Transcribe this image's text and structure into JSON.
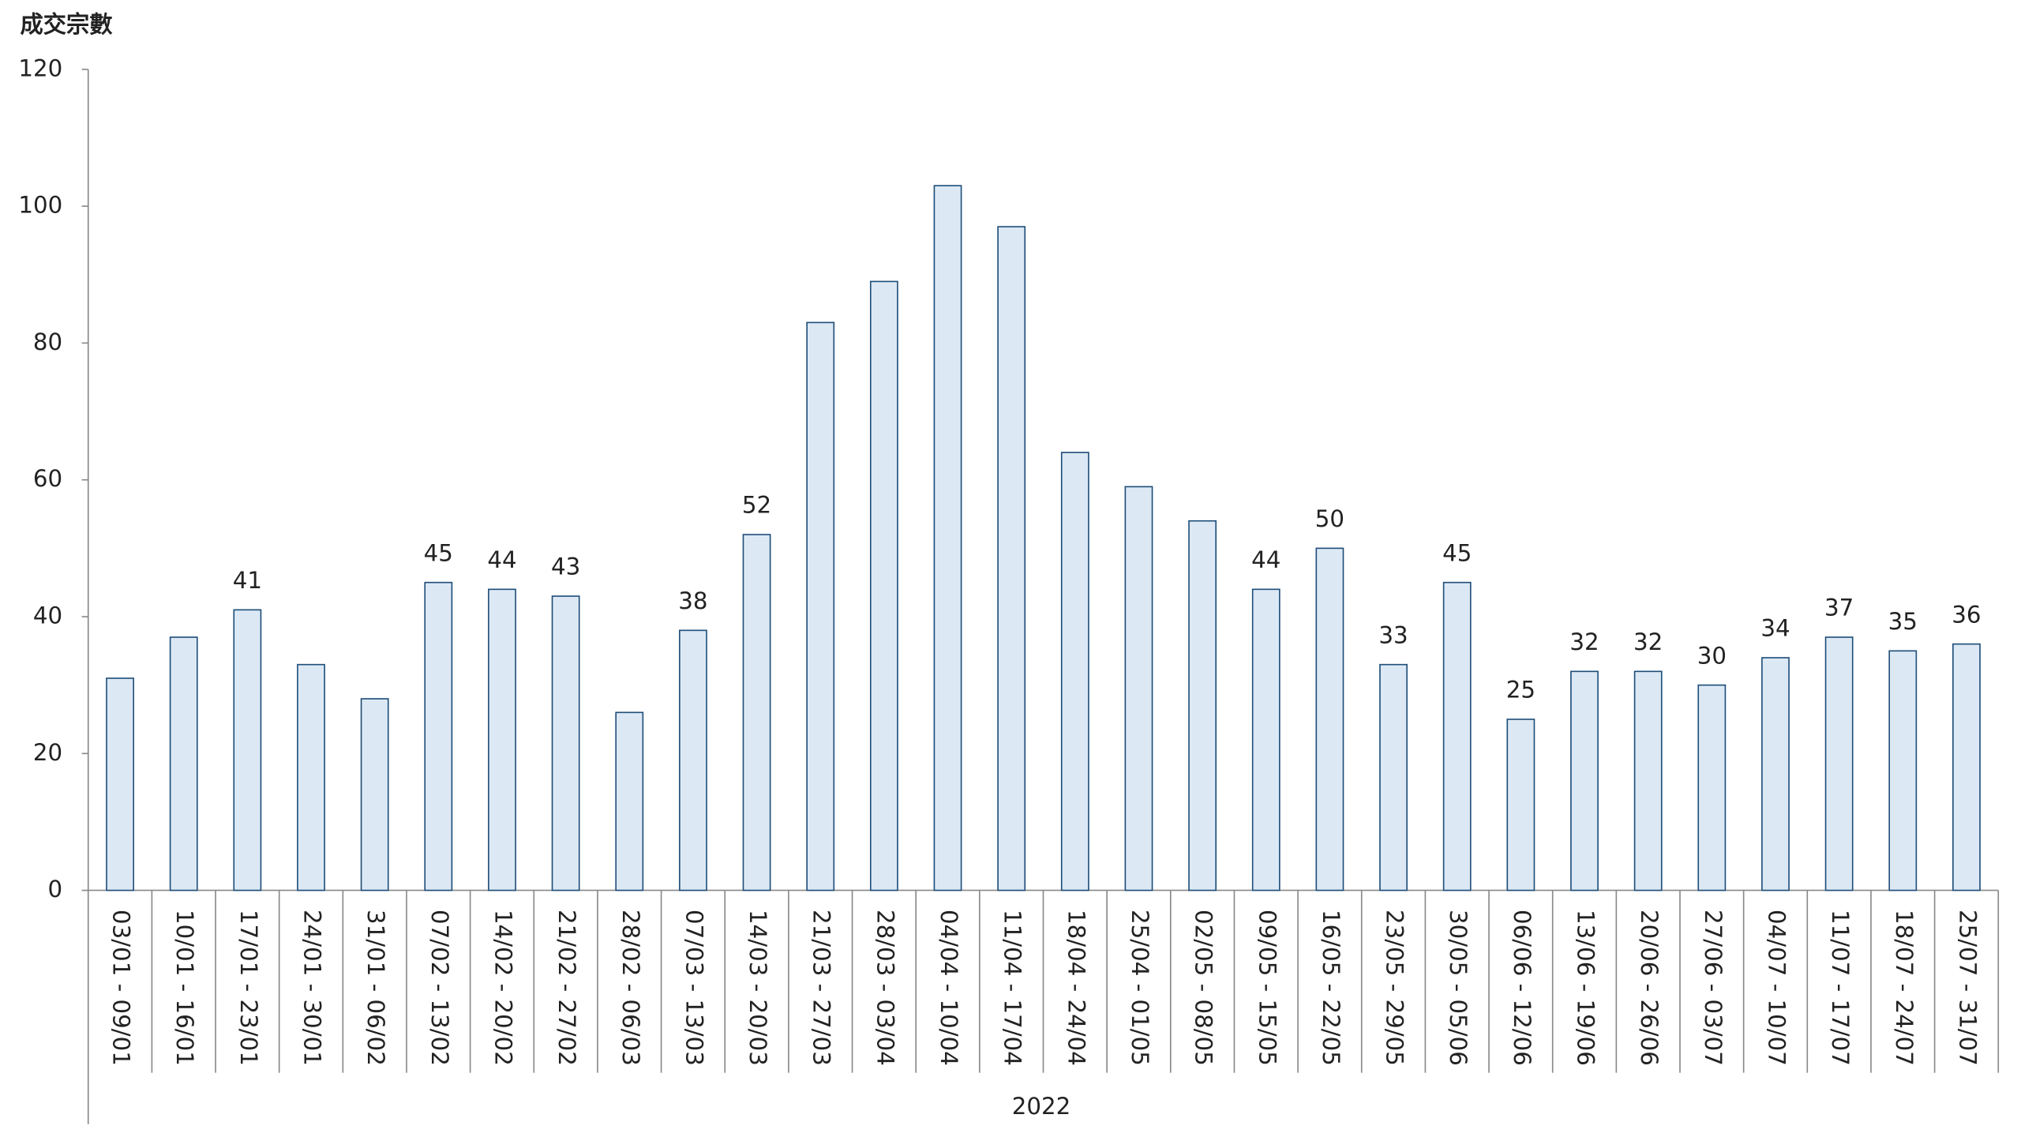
{
  "chart_data": {
    "type": "bar",
    "ylabel": "成交宗數",
    "xlabel": "2022",
    "categories": [
      "03/01 - 09/01",
      "10/01 - 16/01",
      "17/01 - 23/01",
      "24/01 - 30/01",
      "31/01 - 06/02",
      "07/02 - 13/02",
      "14/02 - 20/02",
      "21/02 - 27/02",
      "28/02 - 06/03",
      "07/03 - 13/03",
      "14/03 - 20/03",
      "21/03 - 27/03",
      "28/03 - 03/04",
      "04/04 - 10/04",
      "11/04 - 17/04",
      "18/04 - 24/04",
      "25/04 - 01/05",
      "02/05 - 08/05",
      "09/05 - 15/05",
      "16/05 - 22/05",
      "23/05 - 29/05",
      "30/05 - 05/06",
      "06/06 - 12/06",
      "13/06 - 19/06",
      "20/06 - 26/06",
      "27/06 - 03/07",
      "04/07 - 10/07",
      "11/07 - 17/07",
      "18/07 - 24/07",
      "25/07 - 31/07"
    ],
    "values": [
      31,
      37,
      41,
      33,
      28,
      45,
      44,
      43,
      26,
      38,
      52,
      83,
      89,
      103,
      97,
      64,
      59,
      54,
      44,
      50,
      33,
      45,
      25,
      32,
      32,
      30,
      34,
      37,
      35,
      36
    ],
    "show_value_label": [
      false,
      false,
      true,
      false,
      false,
      true,
      true,
      true,
      false,
      true,
      true,
      false,
      false,
      false,
      false,
      false,
      false,
      false,
      true,
      true,
      true,
      true,
      true,
      true,
      true,
      true,
      true,
      true,
      true,
      true
    ],
    "color": "#dce9f5",
    "edge_color": "#1f4e79",
    "ylim": [
      0,
      120
    ],
    "yticks": [
      0,
      20,
      40,
      60,
      80,
      100,
      120
    ],
    "grid": false
  }
}
